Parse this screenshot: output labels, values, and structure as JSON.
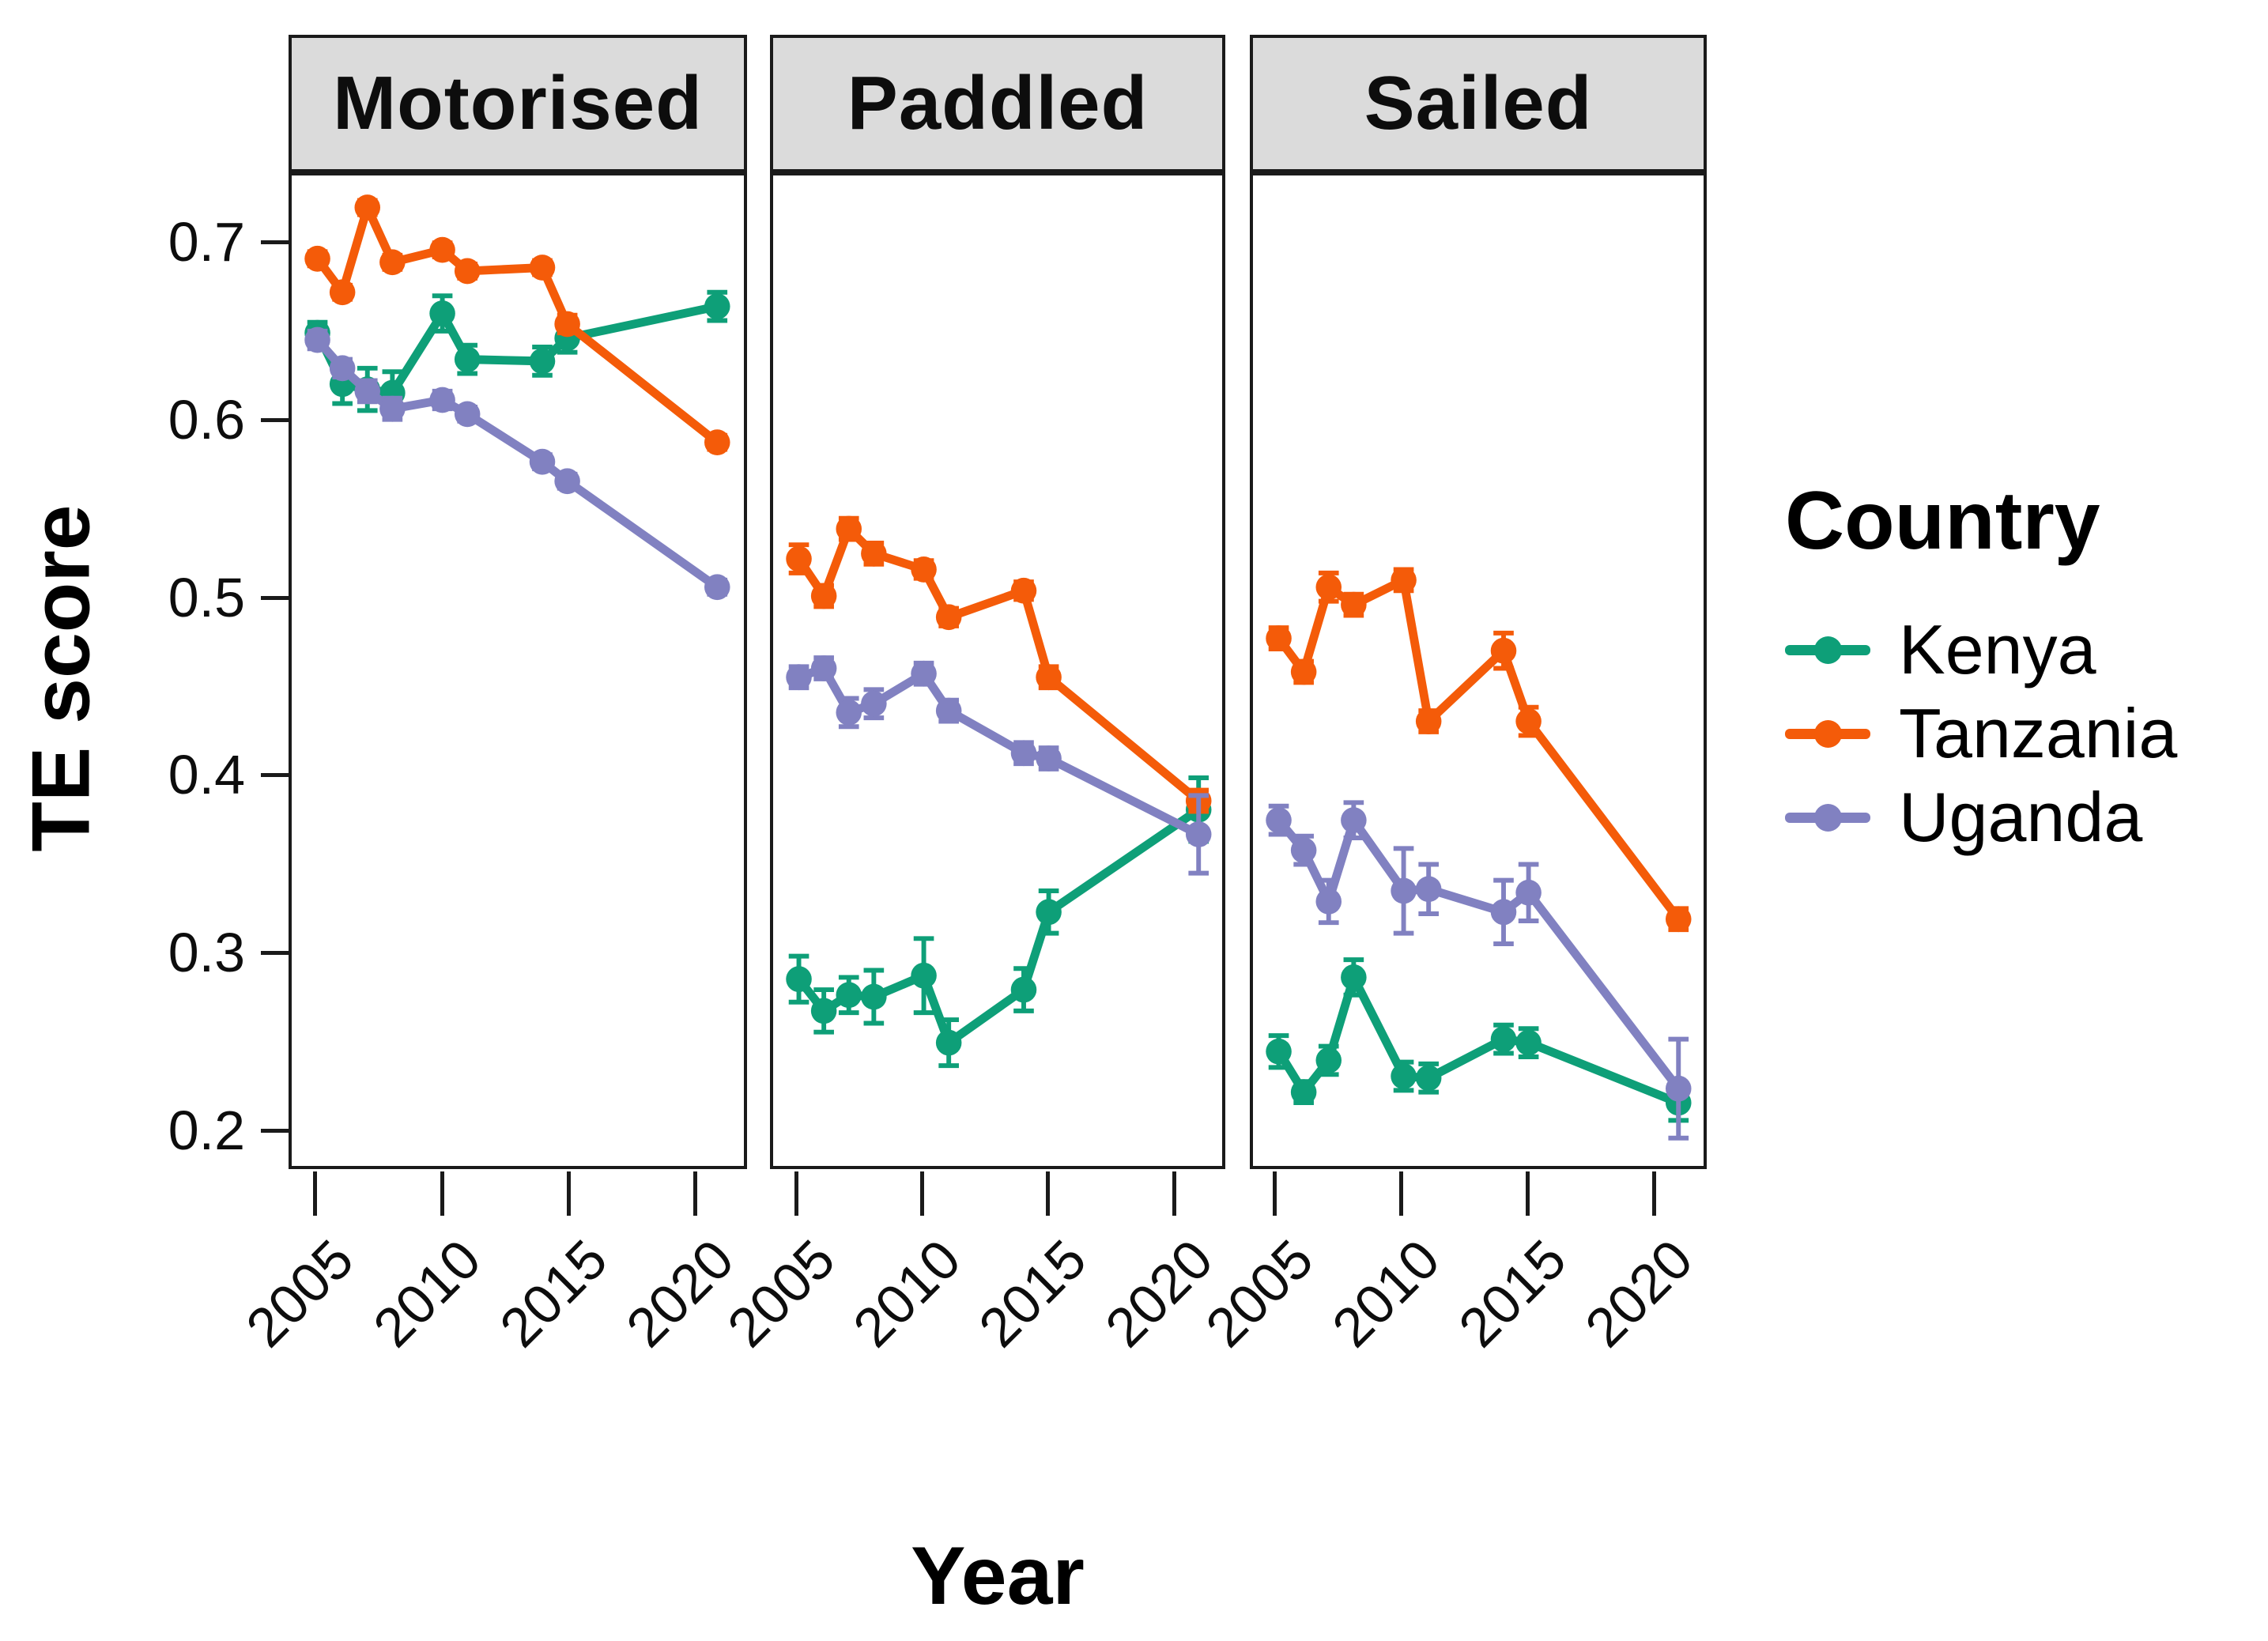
{
  "chart_data": {
    "type": "line",
    "title": "",
    "xlabel": "Year",
    "ylabel": "TE score",
    "legend_title": "Country",
    "facets": [
      "Motorised",
      "Paddled",
      "Sailed"
    ],
    "years": [
      2005,
      2006,
      2007,
      2008,
      2010,
      2011,
      2014,
      2015,
      2021
    ],
    "x_tick_labels": [
      "2005",
      "2010",
      "2015",
      "2020"
    ],
    "x_tick_values": [
      2005,
      2010,
      2015,
      2020
    ],
    "y_tick_labels": [
      "0.7",
      "0.6",
      "0.5",
      "0.4",
      "0.3",
      "0.2"
    ],
    "y_tick_values": [
      0.7,
      0.6,
      0.5,
      0.4,
      0.3,
      0.2
    ],
    "ylim": [
      0.16,
      0.74
    ],
    "grid": false,
    "legend_position": "right",
    "strip_bg": "#DBDBDB",
    "axis_color": "#1A1A1A",
    "series": [
      {
        "name": "Kenya",
        "color": "#0E9F78",
        "facet_values": {
          "Motorised": [
            0.65,
            0.621,
            0.618,
            0.616,
            0.661,
            0.635,
            0.634,
            0.647,
            0.665
          ],
          "Paddled": [
            0.284,
            0.266,
            0.275,
            0.274,
            0.286,
            0.248,
            0.278,
            0.322,
            0.38
          ],
          "Sailed": [
            0.243,
            0.22,
            0.238,
            0.285,
            0.229,
            0.228,
            0.25,
            0.248,
            0.214
          ]
        },
        "facet_se": {
          "Motorised": [
            0.006,
            0.011,
            0.012,
            0.012,
            0.01,
            0.008,
            0.008,
            0.008,
            0.008
          ],
          "Paddled": [
            0.013,
            0.012,
            0.01,
            0.015,
            0.021,
            0.013,
            0.012,
            0.012,
            0.018
          ],
          "Sailed": [
            0.009,
            0.006,
            0.008,
            0.01,
            0.008,
            0.008,
            0.008,
            0.008,
            0.01
          ]
        }
      },
      {
        "name": "Tanzania",
        "color": "#F45B09",
        "facet_values": {
          "Motorised": [
            0.692,
            0.673,
            0.721,
            0.69,
            0.697,
            0.685,
            0.687,
            0.655,
            0.588
          ],
          "Paddled": [
            0.522,
            0.501,
            0.539,
            0.525,
            0.516,
            0.489,
            0.504,
            0.455,
            0.385
          ],
          "Sailed": [
            0.477,
            0.458,
            0.506,
            0.496,
            0.51,
            0.43,
            0.47,
            0.43,
            0.318
          ]
        },
        "facet_se": {
          "Motorised": [
            0.004,
            0.004,
            0.004,
            0.004,
            0.004,
            0.004,
            0.004,
            0.005,
            0.004
          ],
          "Paddled": [
            0.008,
            0.006,
            0.006,
            0.006,
            0.005,
            0.005,
            0.005,
            0.006,
            0.006
          ],
          "Sailed": [
            0.006,
            0.006,
            0.008,
            0.006,
            0.006,
            0.006,
            0.01,
            0.008,
            0.006
          ]
        }
      },
      {
        "name": "Uganda",
        "color": "#8181C1",
        "facet_values": {
          "Motorised": [
            0.646,
            0.63,
            0.617,
            0.607,
            0.612,
            0.604,
            0.577,
            0.566,
            0.506
          ],
          "Paddled": [
            0.455,
            0.46,
            0.435,
            0.44,
            0.457,
            0.436,
            0.412,
            0.409,
            0.366
          ],
          "Sailed": [
            0.374,
            0.357,
            0.328,
            0.374,
            0.334,
            0.335,
            0.322,
            0.333,
            0.222
          ]
        },
        "facet_se": {
          "Motorised": [
            0.005,
            0.005,
            0.006,
            0.006,
            0.005,
            0.004,
            0.004,
            0.004,
            0.004
          ],
          "Paddled": [
            0.006,
            0.006,
            0.008,
            0.008,
            0.006,
            0.006,
            0.006,
            0.006,
            0.022
          ],
          "Sailed": [
            0.008,
            0.008,
            0.012,
            0.01,
            0.024,
            0.014,
            0.018,
            0.016,
            0.028
          ]
        }
      }
    ]
  }
}
